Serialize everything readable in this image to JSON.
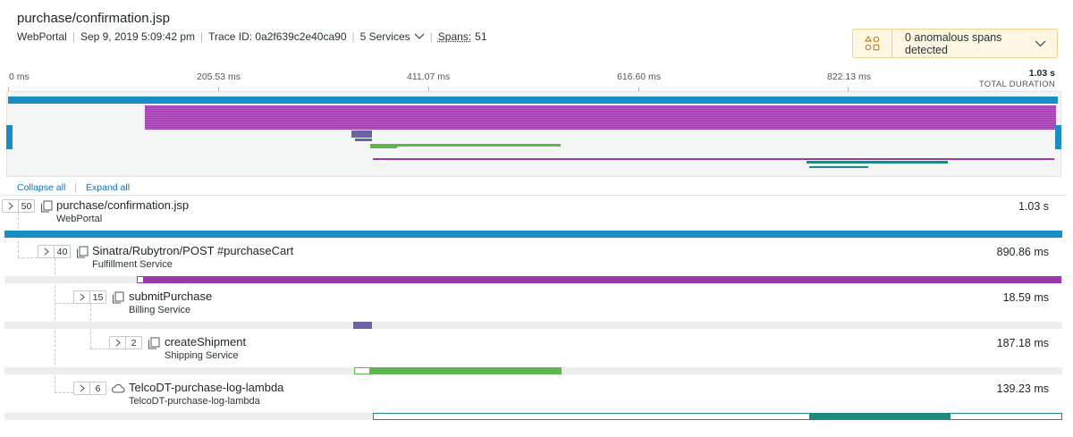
{
  "header": {
    "title": "purchase/confirmation.jsp",
    "app": "WebPortal",
    "timestamp": "Sep 9, 2019 5:09:42 pm",
    "trace_id": "Trace ID: 0a2f639c2e40ca90",
    "services": "5 Services",
    "spans_label": "Spans:",
    "spans_count": "51"
  },
  "anomalies": {
    "text": "0 anomalous spans detected"
  },
  "timeline": {
    "ticks": [
      "0 ms",
      "205.53 ms",
      "411.07 ms",
      "616.60 ms",
      "822.13 ms"
    ],
    "total_duration": "1.03 s",
    "total_label": "TOTAL DURATION"
  },
  "actions": {
    "collapse_all": "Collapse all",
    "expand_all": "Expand all"
  },
  "spans": [
    {
      "count": "50",
      "name": "purchase/confirmation.jsp",
      "service": "WebPortal",
      "duration": "1.03 s",
      "color": "#1a8dc4",
      "icon": "document-stack-icon"
    },
    {
      "count": "40",
      "name": "Sinatra/Rubytron/POST #purchaseCart",
      "service": "Fulfillment Service",
      "duration": "890.86 ms",
      "color": "#9b3aa8",
      "icon": "document-stack-icon"
    },
    {
      "count": "15",
      "name": "submitPurchase",
      "service": "Billing Service",
      "duration": "18.59 ms",
      "color": "#6a62a5",
      "icon": "document-stack-icon"
    },
    {
      "count": "2",
      "name": "createShipment",
      "service": "Shipping Service",
      "duration": "187.18 ms",
      "color": "#62b352",
      "icon": "document-stack-icon"
    },
    {
      "count": "6",
      "name": "TelcoDT-purchase-log-lambda",
      "service": "TelcoDT-purchase-log-lambda",
      "duration": "139.23 ms",
      "color": "#1f8a7c",
      "icon": "cloud-icon"
    }
  ]
}
